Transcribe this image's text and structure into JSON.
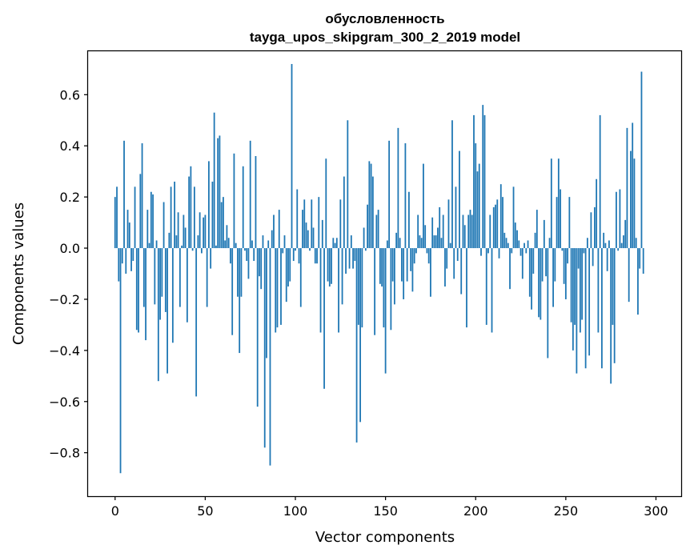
{
  "chart_data": {
    "type": "bar",
    "title": [
      "обусловленность",
      "tayga_upos_skipgram_300_2_2019 model"
    ],
    "xlabel": "Vector components",
    "ylabel": "Components values",
    "xlim": [
      -15,
      314
    ],
    "ylim": [
      -0.97,
      0.77
    ],
    "xticks": [
      0,
      50,
      100,
      150,
      200,
      250,
      300
    ],
    "yticks": [
      -0.8,
      -0.6,
      -0.4,
      -0.2,
      0.0,
      0.2,
      0.4,
      0.6
    ],
    "ytick_labels": [
      "−0.8",
      "−0.6",
      "−0.4",
      "−0.2",
      "0.0",
      "0.2",
      "0.4",
      "0.6"
    ],
    "xtick_labels": [
      "0",
      "50",
      "100",
      "150",
      "200",
      "250",
      "300"
    ],
    "color": "#1f77b4",
    "grid": false,
    "values": [
      0.2,
      0.24,
      -0.13,
      -0.88,
      -0.06,
      0.42,
      -0.1,
      0.15,
      0.1,
      -0.09,
      -0.05,
      0.24,
      -0.32,
      -0.33,
      0.29,
      0.41,
      -0.23,
      -0.36,
      0.15,
      0.02,
      0.22,
      0.21,
      -0.22,
      0.03,
      -0.52,
      -0.28,
      -0.19,
      0.18,
      -0.25,
      -0.49,
      0.06,
      0.24,
      -0.37,
      0.26,
      0.05,
      0.14,
      -0.23,
      0.01,
      0.13,
      0.08,
      -0.29,
      0.28,
      0.32,
      -0.01,
      0.24,
      -0.58,
      0.05,
      0.14,
      -0.02,
      0.12,
      0.13,
      -0.23,
      0.34,
      -0.08,
      0.26,
      0.53,
      0.01,
      0.43,
      0.44,
      0.18,
      0.2,
      0.03,
      0.09,
      0.04,
      -0.06,
      -0.34,
      0.37,
      0.02,
      -0.19,
      -0.41,
      -0.19,
      0.32,
      -0.01,
      -0.05,
      -0.12,
      0.42,
      0.03,
      -0.05,
      0.36,
      -0.62,
      -0.11,
      -0.16,
      0.05,
      -0.78,
      -0.43,
      0.03,
      -0.85,
      0.07,
      0.13,
      -0.33,
      -0.31,
      0.15,
      -0.3,
      -0.02,
      0.05,
      -0.21,
      -0.15,
      -0.13,
      0.72,
      -0.05,
      -0.01,
      0.23,
      -0.06,
      -0.23,
      0.15,
      0.19,
      0.1,
      0.07,
      -0.01,
      0.19,
      0.08,
      -0.06,
      -0.06,
      0.2,
      -0.33,
      0.11,
      -0.55,
      0.35,
      -0.13,
      -0.15,
      -0.14,
      0.04,
      0.02,
      0.04,
      -0.33,
      0.19,
      -0.22,
      0.28,
      -0.1,
      0.5,
      -0.08,
      0.05,
      -0.08,
      -0.05,
      -0.76,
      -0.3,
      -0.68,
      -0.31,
      0.08,
      -0.01,
      0.17,
      0.34,
      0.33,
      0.28,
      -0.34,
      0.13,
      0.15,
      -0.14,
      -0.15,
      -0.31,
      -0.49,
      0.03,
      0.42,
      -0.32,
      -0.13,
      -0.22,
      0.06,
      0.47,
      0.04,
      -0.13,
      -0.2,
      0.41,
      -0.13,
      0.22,
      -0.09,
      -0.17,
      -0.06,
      -0.02,
      0.13,
      0.05,
      0.04,
      0.33,
      0.09,
      -0.02,
      -0.06,
      -0.19,
      0.12,
      0.05,
      0.05,
      0.08,
      0.16,
      0.04,
      0.13,
      -0.15,
      -0.08,
      0.19,
      0.02,
      0.5,
      -0.12,
      0.24,
      -0.05,
      0.38,
      -0.18,
      0.13,
      0.09,
      -0.31,
      0.13,
      0.15,
      0.13,
      0.52,
      0.41,
      0.3,
      0.33,
      -0.03,
      0.56,
      0.52,
      -0.3,
      -0.02,
      0.13,
      -0.33,
      0.16,
      0.17,
      0.19,
      -0.04,
      0.25,
      0.2,
      0.06,
      0.04,
      0.02,
      -0.16,
      -0.02,
      0.24,
      0.1,
      0.07,
      0.03,
      -0.03,
      -0.12,
      0.02,
      -0.02,
      0.03,
      -0.19,
      -0.24,
      -0.1,
      0.06,
      0.15,
      -0.27,
      -0.28,
      -0.13,
      0.11,
      -0.11,
      -0.43,
      0.04,
      0.35,
      -0.23,
      -0.13,
      0.2,
      0.35,
      0.23,
      -0.01,
      -0.14,
      -0.2,
      -0.06,
      0.2,
      -0.29,
      -0.4,
      -0.3,
      -0.49,
      -0.08,
      -0.33,
      -0.28,
      -0.02,
      -0.47,
      0.04,
      -0.42,
      0.14,
      -0.07,
      0.16,
      0.27,
      -0.33,
      0.52,
      -0.47,
      0.06,
      0.02,
      -0.09,
      0.03,
      -0.53,
      -0.3,
      -0.45,
      0.22,
      -0.01,
      0.23,
      0.02,
      0.05,
      0.11,
      0.47,
      -0.21,
      0.38,
      0.49,
      0.35,
      0.04,
      -0.26,
      -0.08,
      0.69,
      -0.1
    ]
  }
}
